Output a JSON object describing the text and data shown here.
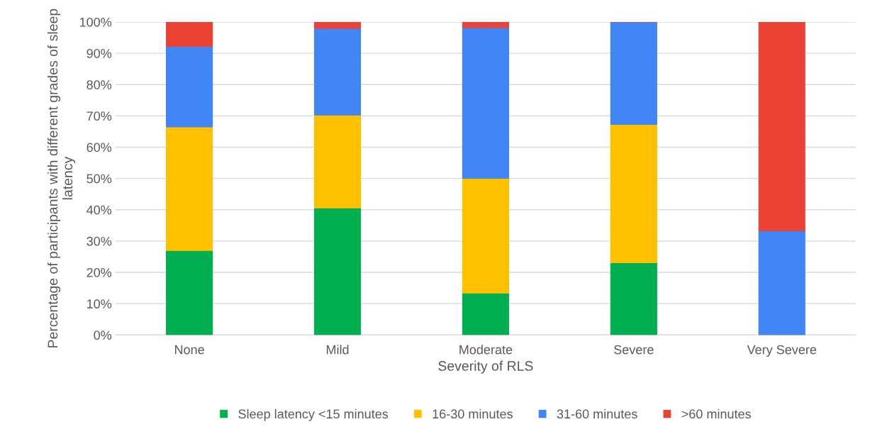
{
  "chart_data": {
    "type": "bar",
    "stacked": true,
    "xlabel": "Severity of RLS",
    "ylabel": "Percentage of participants with different grades of sleep latency",
    "categories": [
      "None",
      "Mild",
      "Moderate",
      "Severe",
      "Very Severe"
    ],
    "series": [
      {
        "name": "Sleep latency <15 minutes",
        "color": "#00b050",
        "values": [
          27,
          40.6,
          13.4,
          23.1,
          0
        ]
      },
      {
        "name": "16-30 minutes",
        "color": "#ffc000",
        "values": [
          39.5,
          29.7,
          36.7,
          44.2,
          0
        ]
      },
      {
        "name": "31-60 minutes",
        "color": "#4285f4",
        "values": [
          25.7,
          27.7,
          48.1,
          32.7,
          33.3
        ]
      },
      {
        "name": ">60 minutes",
        "color": "#ea4335",
        "values": [
          7.8,
          2,
          1.8,
          0,
          66.7
        ]
      }
    ],
    "ylim": [
      0,
      100
    ],
    "yticks": [
      {
        "value": 0,
        "label": "0%"
      },
      {
        "value": 10,
        "label": "10%"
      },
      {
        "value": 20,
        "label": "20%"
      },
      {
        "value": 30,
        "label": "30%"
      },
      {
        "value": 40,
        "label": "40%"
      },
      {
        "value": 50,
        "label": "50%"
      },
      {
        "value": 60,
        "label": "60%"
      },
      {
        "value": 70,
        "label": "70%"
      },
      {
        "value": 80,
        "label": "80%"
      },
      {
        "value": 90,
        "label": "90%"
      },
      {
        "value": 100,
        "label": "100%"
      }
    ],
    "grid": "y",
    "legend": "bottom"
  }
}
